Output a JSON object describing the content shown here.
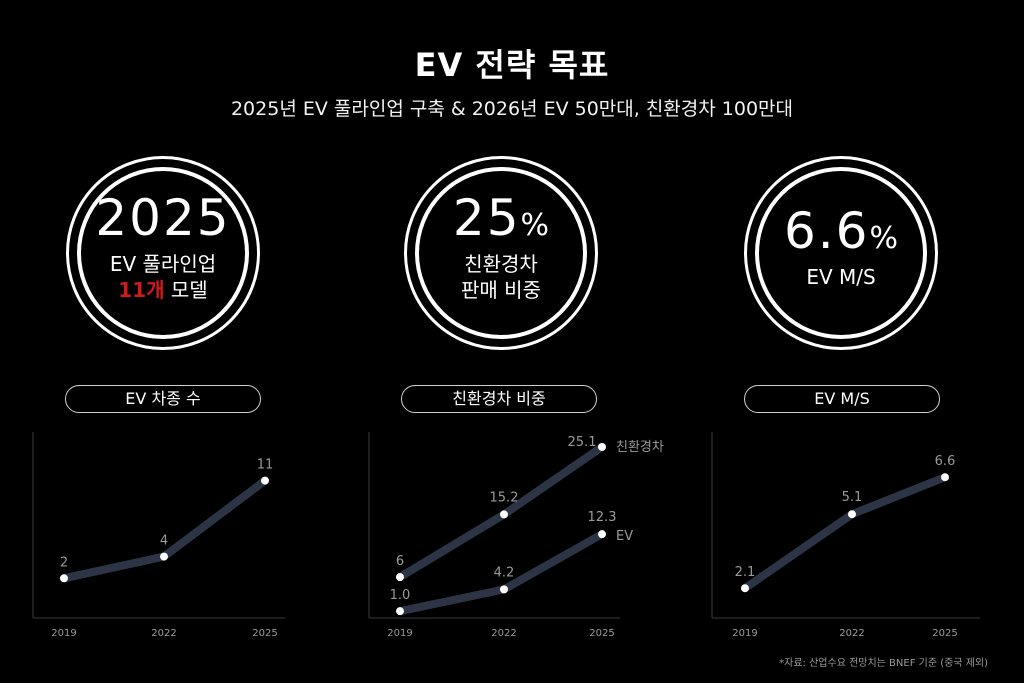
{
  "header": {
    "title": "EV 전략 목표",
    "subtitle": "2025년 EV 풀라인업 구축 & 2026년 EV 50만대, 친환경차 100만대"
  },
  "kpis": [
    {
      "big": "2025",
      "unit": "",
      "line1": "EV 풀라인업",
      "line2_highlight": "11개",
      "line2_rest": " 모델"
    },
    {
      "big": "25",
      "unit": "%",
      "line1": "친환경차",
      "line2": "판매 비중"
    },
    {
      "big": "6.6",
      "unit": "%",
      "line1": "EV M/S"
    }
  ],
  "pills": [
    "EV 차종 수",
    "친환경차 비중",
    "EV M/S"
  ],
  "footnote": "*자료: 산업수요 전망치는 BNEF 기준 (중국 제외)",
  "colors": {
    "line": "#2c3446",
    "accent_red": "#d11a1a",
    "background": "#000000"
  },
  "chart_data": [
    {
      "type": "line",
      "x": [
        "2019",
        "2022",
        "2025"
      ],
      "series": [
        {
          "values": [
            2,
            4,
            11
          ],
          "labels": [
            "2",
            "4",
            "11"
          ]
        }
      ],
      "ylim": [
        0,
        14
      ]
    },
    {
      "type": "line",
      "x": [
        "2019",
        "2022",
        "2025"
      ],
      "series": [
        {
          "name": "친환경차",
          "values": [
            6,
            15.2,
            25.1
          ],
          "labels": [
            "6",
            "15.2",
            "25.1"
          ]
        },
        {
          "name": "EV",
          "values": [
            1.0,
            4.2,
            12.3
          ],
          "labels": [
            "1.0",
            "4.2",
            "12.3"
          ]
        }
      ],
      "ylim": [
        0,
        27
      ]
    },
    {
      "type": "line",
      "x": [
        "2019",
        "2022",
        "2025"
      ],
      "series": [
        {
          "values": [
            2.1,
            5.1,
            6.6
          ],
          "labels": [
            "2.1",
            "5.1",
            "6.6"
          ]
        }
      ],
      "ylim": [
        0,
        7.5
      ]
    }
  ]
}
